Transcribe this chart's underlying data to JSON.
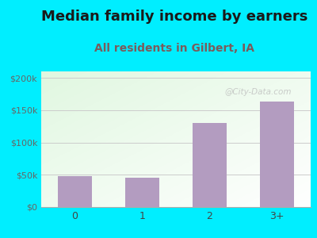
{
  "title": "Median family income by earners",
  "subtitle": "All residents in Gilbert, IA",
  "categories": [
    "0",
    "1",
    "2",
    "3+"
  ],
  "values": [
    48000,
    45000,
    130000,
    163000
  ],
  "bar_color": "#b39cc0",
  "title_color": "#1a1a1a",
  "subtitle_color": "#7a5c5c",
  "yticks": [
    0,
    50000,
    100000,
    150000,
    200000
  ],
  "ytick_labels": [
    "$0",
    "$50k",
    "$100k",
    "$150k",
    "$200k"
  ],
  "ylim": [
    0,
    210000
  ],
  "background_outer": "#00eeff",
  "watermark": "@City-Data.com",
  "title_fontsize": 13,
  "subtitle_fontsize": 10
}
